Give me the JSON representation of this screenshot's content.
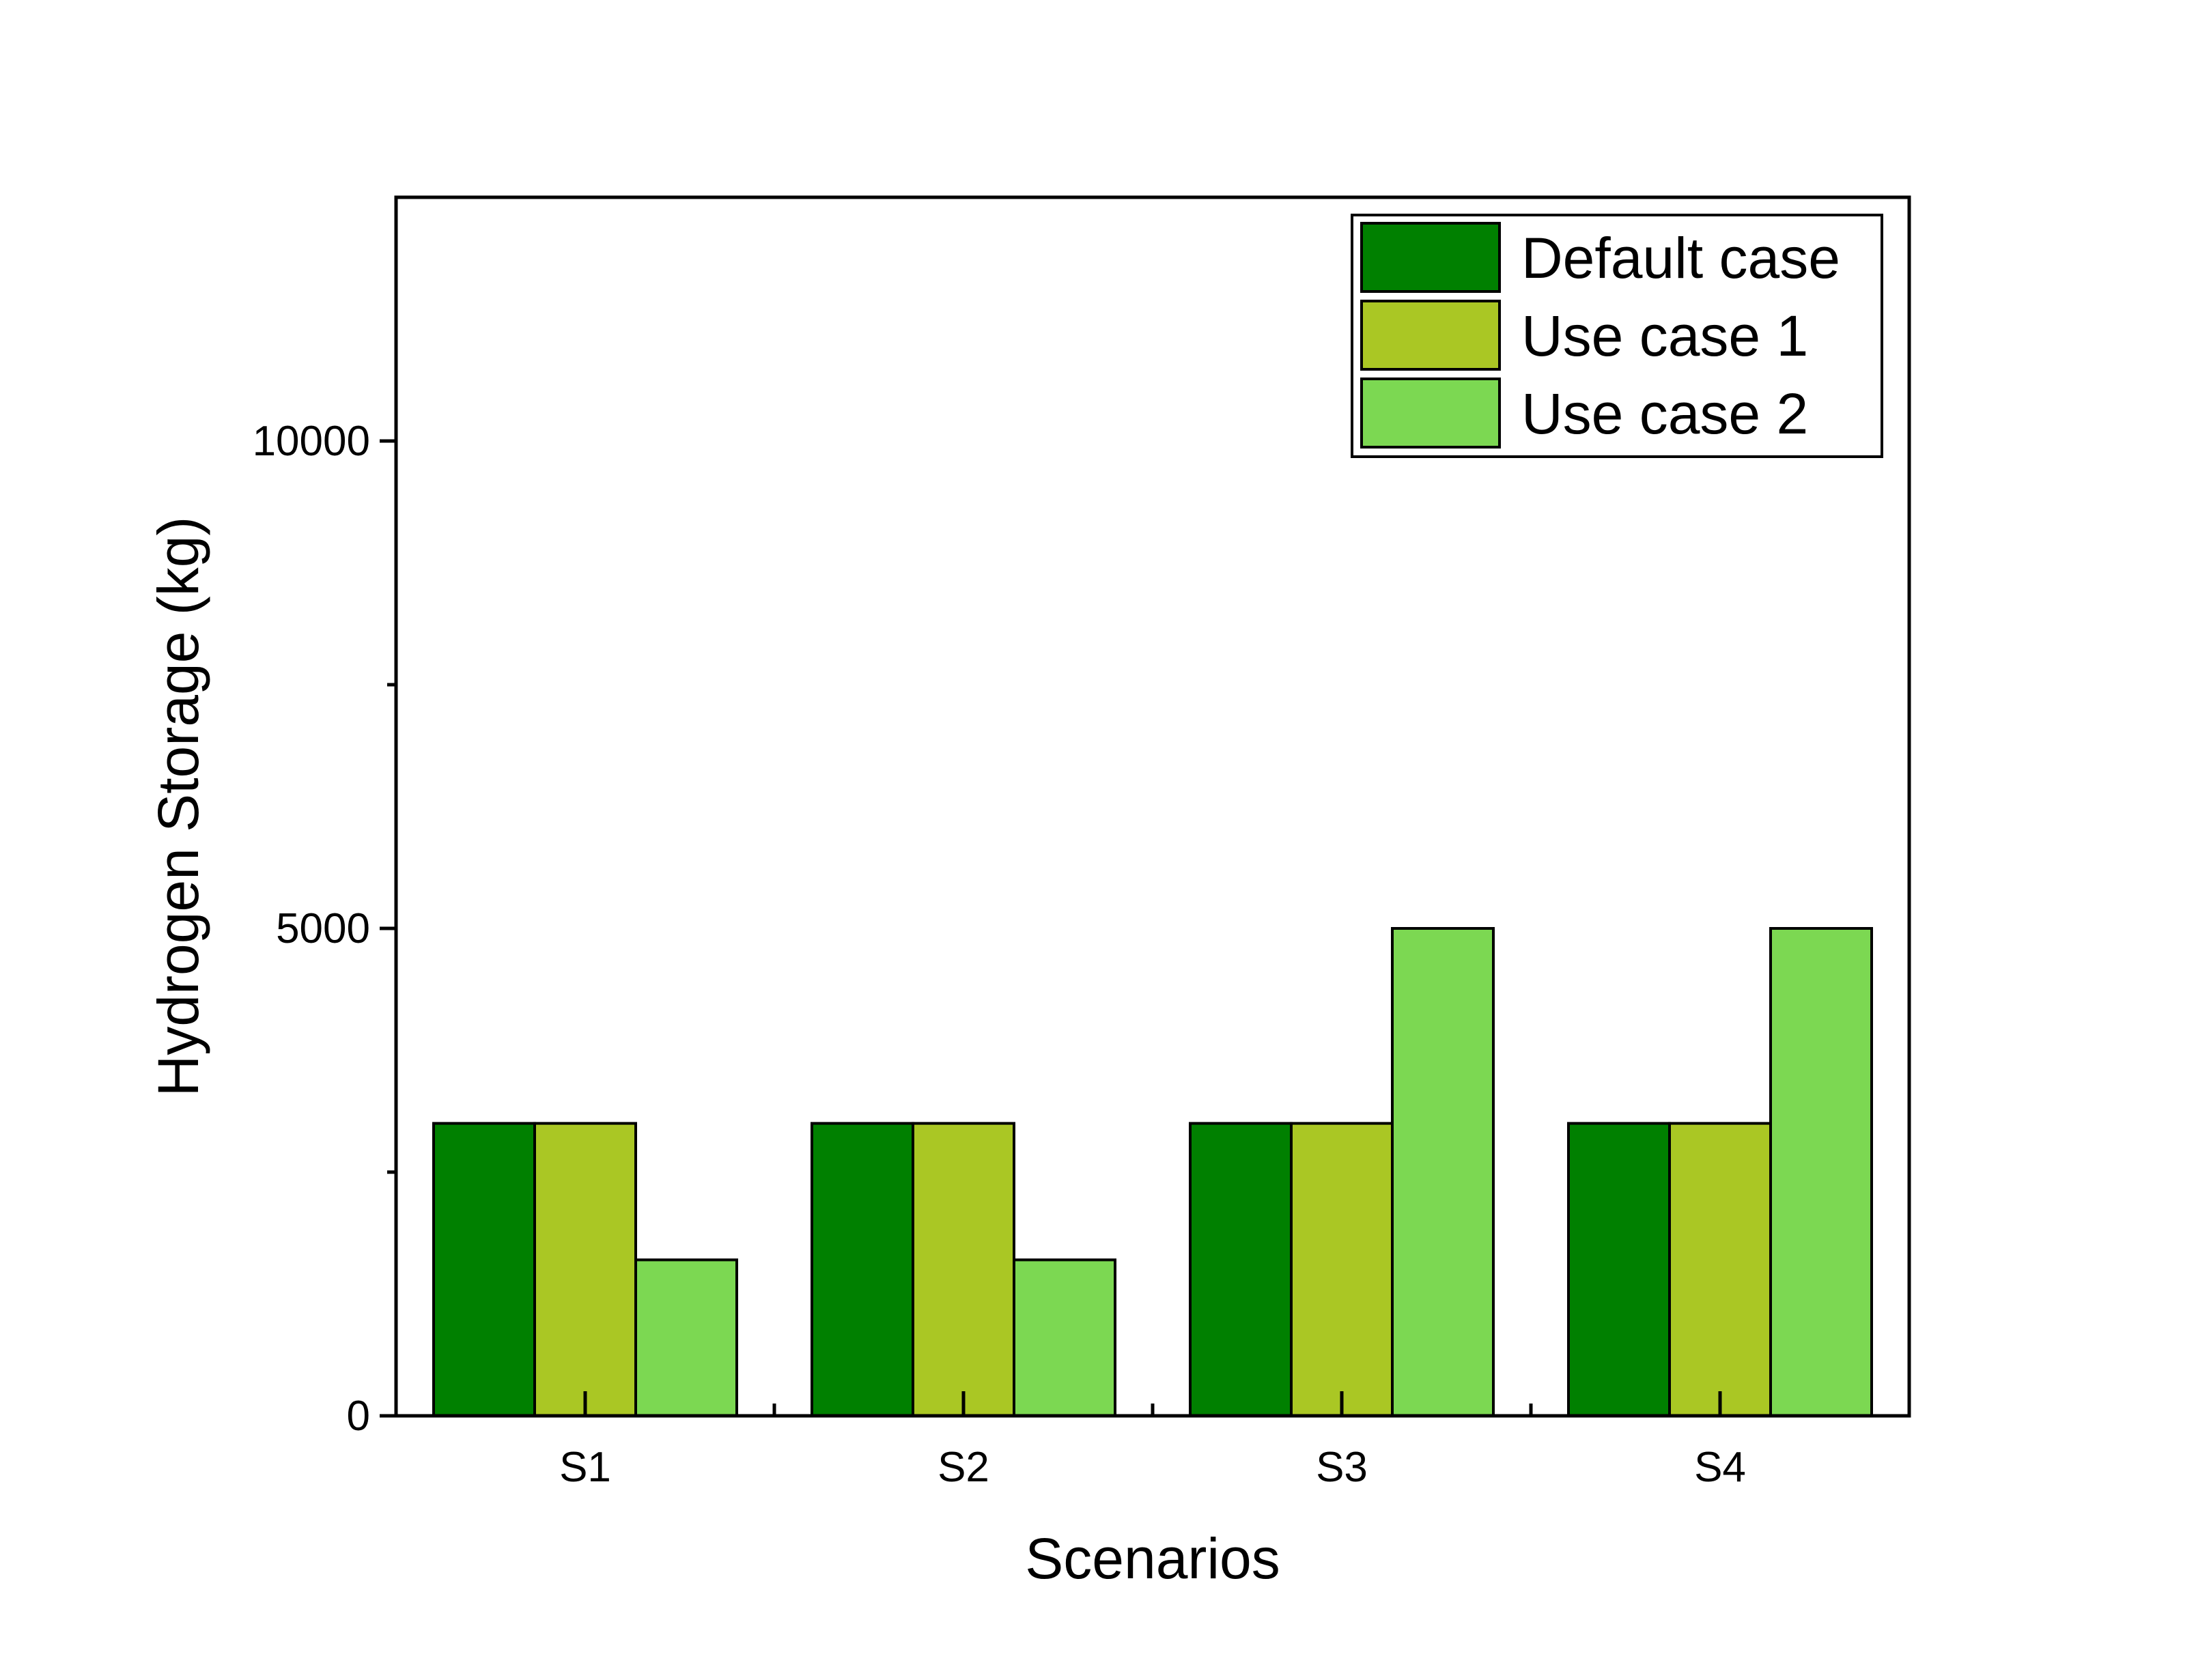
{
  "chart_data": {
    "type": "bar",
    "title": "",
    "xlabel": "Scenarios",
    "ylabel": "Hydrogen Storage (kg)",
    "categories": [
      "S1",
      "S2",
      "S3",
      "S4"
    ],
    "series": [
      {
        "name": "Default case",
        "color": "#008000",
        "values": [
          3000,
          3000,
          3000,
          3000
        ]
      },
      {
        "name": "Use case 1",
        "color": "#aac724",
        "values": [
          3000,
          3000,
          3000,
          3000
        ]
      },
      {
        "name": "Use case 2",
        "color": "#7cd852",
        "values": [
          1600,
          1600,
          5000,
          5000
        ]
      }
    ],
    "ylim": [
      0,
      12500
    ],
    "yticks": [
      0,
      5000,
      10000
    ],
    "yticks_minor": [
      2500,
      7500
    ],
    "grid": false,
    "legend_position": "top-right"
  }
}
